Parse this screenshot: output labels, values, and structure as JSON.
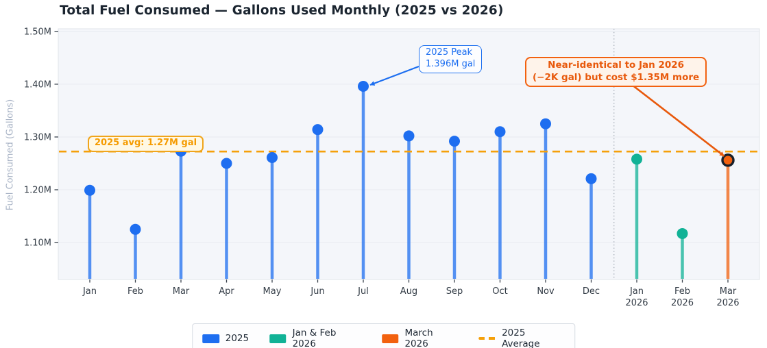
{
  "title": "Total Fuel Consumed — Gallons Used Monthly (2025 vs 2026)",
  "y_axis": {
    "label": "Fuel Consumed (Gallons)",
    "ticks": [
      {
        "label": "1.10M",
        "value": 1.1
      },
      {
        "label": "1.20M",
        "value": 1.2
      },
      {
        "label": "1.30M",
        "value": 1.3
      },
      {
        "label": "1.40M",
        "value": 1.4
      },
      {
        "label": "1.50M",
        "value": 1.5
      }
    ]
  },
  "annotations": {
    "peak": {
      "line1": "2025 Peak",
      "line2": "1.396M gal",
      "target_index": 6,
      "target_value": 1.396,
      "color": "#1c6ef0"
    },
    "comparison": {
      "line1": "Near-identical to Jan 2026",
      "line2": "(−2K gal) but cost $1.35M more",
      "target_index": 14,
      "target_value": 1.256,
      "color": "#e8590c"
    },
    "average": {
      "label": "2025 avg: 1.27M gal",
      "color": "#f59b00"
    }
  },
  "legend": {
    "items": [
      {
        "label": "2025",
        "type": "swatch",
        "color": "#1e6ef0"
      },
      {
        "label": "Jan & Feb 2026",
        "type": "swatch",
        "color": "#11b296"
      },
      {
        "label": "March 2026",
        "type": "swatch",
        "color": "#f2610f"
      },
      {
        "label": "2025 Average",
        "type": "dash",
        "color": "#f5a00a"
      }
    ]
  },
  "chart_data": {
    "type": "scatter",
    "style": "lollipop-stem",
    "title": "Total Fuel Consumed — Gallons Used Monthly (2025 vs 2026)",
    "ylabel": "Fuel Consumed (Gallons)",
    "units": "millions of gallons",
    "ylim": [
      1.03,
      1.505
    ],
    "grid": true,
    "legend_position": "bottom",
    "categories": [
      {
        "label": "Jan"
      },
      {
        "label": "Feb"
      },
      {
        "label": "Mar"
      },
      {
        "label": "Apr"
      },
      {
        "label": "May"
      },
      {
        "label": "Jun"
      },
      {
        "label": "Jul"
      },
      {
        "label": "Aug"
      },
      {
        "label": "Sep"
      },
      {
        "label": "Oct"
      },
      {
        "label": "Nov"
      },
      {
        "label": "Dec"
      },
      {
        "label": "Jan",
        "sub": "2026"
      },
      {
        "label": "Feb",
        "sub": "2026"
      },
      {
        "label": "Mar",
        "sub": "2026"
      }
    ],
    "series": [
      {
        "name": "2025",
        "color": "#1e6ef0",
        "start_index": 0,
        "values": [
          1.199,
          1.125,
          1.273,
          1.25,
          1.261,
          1.314,
          1.396,
          1.302,
          1.292,
          1.31,
          1.325,
          1.221
        ]
      },
      {
        "name": "Jan & Feb 2026",
        "color": "#11b296",
        "start_index": 12,
        "values": [
          1.258,
          1.117
        ]
      },
      {
        "name": "March 2026",
        "color": "#f2610f",
        "start_index": 14,
        "values": [
          1.256
        ],
        "marker_ring": "#17202b"
      }
    ],
    "average_line": {
      "value": 1.2725,
      "label": "2025 avg: 1.27M gal",
      "color": "#f5a00a",
      "style": "dashed"
    },
    "separator_after_index": 11
  }
}
